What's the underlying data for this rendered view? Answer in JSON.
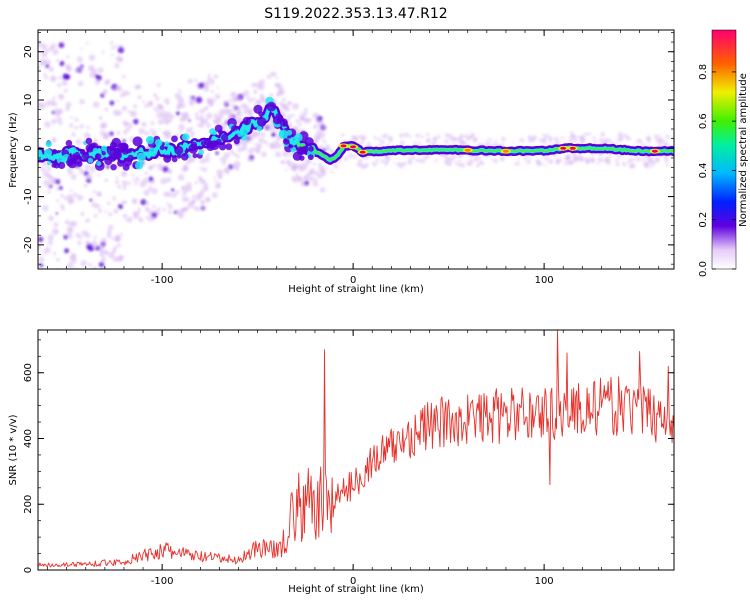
{
  "title": "S119.2022.353.13.47.R12",
  "colors": {
    "snr_line": "#e8312a",
    "background_smear": "#d9b8f2",
    "core_dark": "#5a00d8",
    "core_cyan": "#20e8f0",
    "core_green": "#40f040",
    "core_yellow": "#f0f000",
    "core_red": "#f00060"
  },
  "chart_data": [
    {
      "type": "heatmap",
      "xlabel": "Height of straight line (km)",
      "ylabel": "Frequency (Hz)",
      "xlim": [
        -165,
        168
      ],
      "ylim": [
        -25,
        24.5
      ],
      "x_ticks": [
        {
          "value": -100,
          "label": "-100"
        },
        {
          "value": 0,
          "label": "0"
        },
        {
          "value": 100,
          "label": "100"
        }
      ],
      "y_ticks": [
        {
          "value": -20,
          "label": "-20"
        },
        {
          "value": -10,
          "label": "-10"
        },
        {
          "value": 0,
          "label": "0"
        },
        {
          "value": 10,
          "label": "10"
        },
        {
          "value": 20,
          "label": "20"
        }
      ],
      "colorbar": {
        "label": "Normalized spectral amplitude",
        "range": [
          0,
          0.97
        ],
        "ticks": [
          {
            "value": 0.0,
            "label": "0.0"
          },
          {
            "value": 0.2,
            "label": "0.2"
          },
          {
            "value": 0.4,
            "label": "0.4"
          },
          {
            "value": 0.6,
            "label": "0.6"
          },
          {
            "value": 0.8,
            "label": "0.8"
          }
        ]
      },
      "ridge": {
        "x": [
          -165,
          -140,
          -120,
          -100,
          -80,
          -60,
          -48,
          -42,
          -38,
          -32,
          -25,
          -18,
          -12,
          -8,
          -5,
          0,
          5,
          20,
          40,
          60,
          80,
          100,
          110,
          130,
          150,
          168
        ],
        "y": [
          -1.5,
          -1.0,
          -1.5,
          -0.5,
          0.5,
          3.5,
          6.0,
          8.5,
          5.5,
          1.0,
          0.0,
          -1.0,
          -2.5,
          -1.5,
          0.5,
          0.5,
          -0.8,
          -0.5,
          -0.3,
          -0.4,
          -0.6,
          -0.5,
          0.0,
          0.0,
          -0.6,
          -0.6
        ]
      },
      "peak_amplitude_locations": [
        {
          "x": -5,
          "y": 0.5,
          "level": 0.95
        },
        {
          "x": 0,
          "y": 0.3,
          "level": 0.95
        },
        {
          "x": 5,
          "y": -0.8,
          "level": 0.9
        },
        {
          "x": 110,
          "y": 0.0,
          "level": 0.95
        },
        {
          "x": 115,
          "y": 0.0,
          "level": 0.9
        },
        {
          "x": 158,
          "y": -0.6,
          "level": 0.9
        },
        {
          "x": 80,
          "y": -0.6,
          "level": 0.8
        },
        {
          "x": 60,
          "y": -0.4,
          "level": 0.7
        }
      ]
    },
    {
      "type": "line",
      "xlabel": "Height of straight line (km)",
      "ylabel": "SNR (10 * v/v)",
      "xlim": [
        -165,
        168
      ],
      "ylim": [
        0,
        730
      ],
      "x_ticks": [
        {
          "value": -100,
          "label": "-100"
        },
        {
          "value": 0,
          "label": "0"
        },
        {
          "value": 100,
          "label": "100"
        }
      ],
      "y_ticks": [
        {
          "value": 0,
          "label": "0"
        },
        {
          "value": 200,
          "label": "200"
        },
        {
          "value": 400,
          "label": "400"
        },
        {
          "value": 600,
          "label": "600"
        }
      ],
      "trend_x": [
        -165,
        -140,
        -120,
        -100,
        -80,
        -60,
        -50,
        -40,
        -30,
        -25,
        -20,
        -10,
        0,
        10,
        20,
        30,
        40,
        60,
        80,
        100,
        120,
        140,
        168
      ],
      "trend_y": [
        15,
        18,
        25,
        60,
        40,
        30,
        70,
        60,
        180,
        200,
        190,
        220,
        260,
        330,
        370,
        410,
        440,
        460,
        470,
        480,
        490,
        500,
        460
      ],
      "spikes": [
        {
          "x": -15,
          "y": 670
        },
        {
          "x": 107,
          "y": 730
        },
        {
          "x": 112,
          "y": 660
        },
        {
          "x": 103,
          "y": 260
        },
        {
          "x": 150,
          "y": 665
        },
        {
          "x": 165,
          "y": 620
        }
      ]
    }
  ]
}
